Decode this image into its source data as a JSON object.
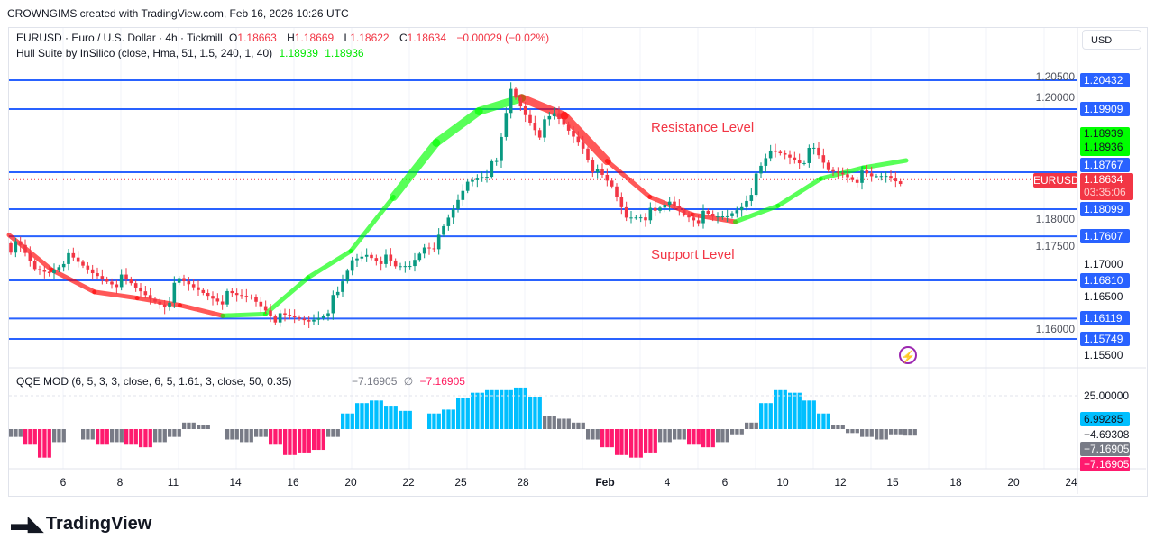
{
  "header": {
    "credit": "CROWNGIMS created with TradingView.com, Feb 16, 2026 10:26 UTC"
  },
  "legend": {
    "symbol": "EURUSD · Euro / U.S. Dollar · 4h · Tickmill",
    "o_label": "O",
    "o": "1.18663",
    "h_label": "H",
    "h": "1.18669",
    "l_label": "L",
    "l": "1.18622",
    "c_label": "C",
    "c": "1.18634",
    "change": "−0.00029 (−0.02%)",
    "hull": "Hull Suite by InSilico (close, Hma, 51, 1.5, 240, 1, 40)",
    "hull_v1": "1.18939",
    "hull_v2": "1.18936",
    "qqe": "QQE MOD (6, 5, 3, 3, close, 6, 5, 1.61, 3, close, 50, 0.35)",
    "qqe_v1": "−7.16905",
    "qqe_sym": "∅",
    "qqe_v2": "−7.16905"
  },
  "currency": "USD",
  "annotations": {
    "resistance": "Resistance Level",
    "support": "Support Level"
  },
  "colors": {
    "up": "#089981",
    "down": "#f23645",
    "level": "#2962ff",
    "hull_up": "#00ff00",
    "hull_down": "#ff0000",
    "qqe_pos": "#00bfff",
    "qqe_neg": "#ff1a6e",
    "qqe_neutral": "#787b86"
  },
  "price_axis": {
    "ticks": [
      "1.17000",
      "1.16500",
      "1.15500"
    ],
    "hidden_ticks": [
      "1.20500",
      "1.20000",
      "1.18000",
      "1.17500",
      "1.16000"
    ]
  },
  "levels": [
    "1.20432",
    "1.19909",
    "1.18767",
    "1.18099",
    "1.17607",
    "1.16810",
    "1.16119",
    "1.15749"
  ],
  "current": {
    "symbol_tag": "EURUSD",
    "price": "1.18634",
    "countdown": "03:35:06"
  },
  "hull_labels": [
    "1.18939",
    "1.18936"
  ],
  "qqe_axis": {
    "ticks": [
      "25.00000",
      "−4.69308"
    ],
    "badges": [
      {
        "v": "6.99285",
        "c": "#00bfff"
      },
      {
        "v": "−7.16905",
        "c": "#787b86"
      },
      {
        "v": "−7.16905",
        "c": "#ff1a6e"
      }
    ]
  },
  "time_axis": [
    "6",
    "8",
    "11",
    "14",
    "16",
    "20",
    "22",
    "25",
    "28",
    "Feb",
    "4",
    "6",
    "10",
    "12",
    "15",
    "18",
    "20",
    "24"
  ],
  "brand": "TradingView",
  "chart_data": {
    "type": "candlestick",
    "closes": [
      1.1748,
      1.1735,
      1.1699,
      1.1699,
      1.1723,
      1.1707,
      1.1694,
      1.1686,
      1.1679,
      1.1663,
      1.165,
      1.1642,
      1.1675,
      1.1666,
      1.1658,
      1.165,
      1.1647,
      1.165,
      1.1634,
      1.1609,
      1.1609,
      1.1609,
      1.1626,
      1.165,
      1.1715,
      1.1732,
      1.1723,
      1.1699,
      1.1707,
      1.1748,
      1.1751,
      1.1805,
      1.1862,
      1.1878,
      1.1887,
      1.2025,
      1.1985,
      1.1952,
      1.1976,
      1.1952,
      1.1927,
      1.187,
      1.1846,
      1.1797,
      1.1805,
      1.1797,
      1.1821,
      1.1805,
      1.1797,
      1.1789,
      1.1797,
      1.1821,
      1.1862,
      1.1911,
      1.1911,
      1.1903,
      1.1911,
      1.1878,
      1.1878,
      1.187,
      1.1862,
      1.187,
      1.1863
    ],
    "hull": [
      1.1763,
      1.17,
      1.166,
      1.1649,
      1.1636,
      1.1617,
      1.162,
      1.1686,
      1.1734,
      1.1832,
      1.193,
      1.1987,
      1.2011,
      1.1979,
      1.1897,
      1.1832,
      1.18,
      1.1787,
      1.1816,
      1.1865,
      1.1885,
      1.1898
    ],
    "qqe": [
      -6,
      -12,
      -22,
      -10,
      0,
      -8,
      -12,
      -10,
      -12,
      -14,
      -10,
      -6,
      5,
      3,
      0,
      -8,
      -10,
      -6,
      -12,
      -20,
      -18,
      -16,
      -6,
      12,
      20,
      22,
      18,
      14,
      0,
      12,
      15,
      24,
      28,
      30,
      30,
      32,
      25,
      10,
      8,
      5,
      -8,
      -14,
      -20,
      -22,
      -18,
      -10,
      -8,
      -12,
      -14,
      -10,
      -4,
      5,
      20,
      30,
      28,
      22,
      12,
      3,
      -3,
      -6,
      -8,
      -4,
      -5
    ],
    "y_range": [
      1.155,
      1.207
    ],
    "qqe_level": 25
  }
}
